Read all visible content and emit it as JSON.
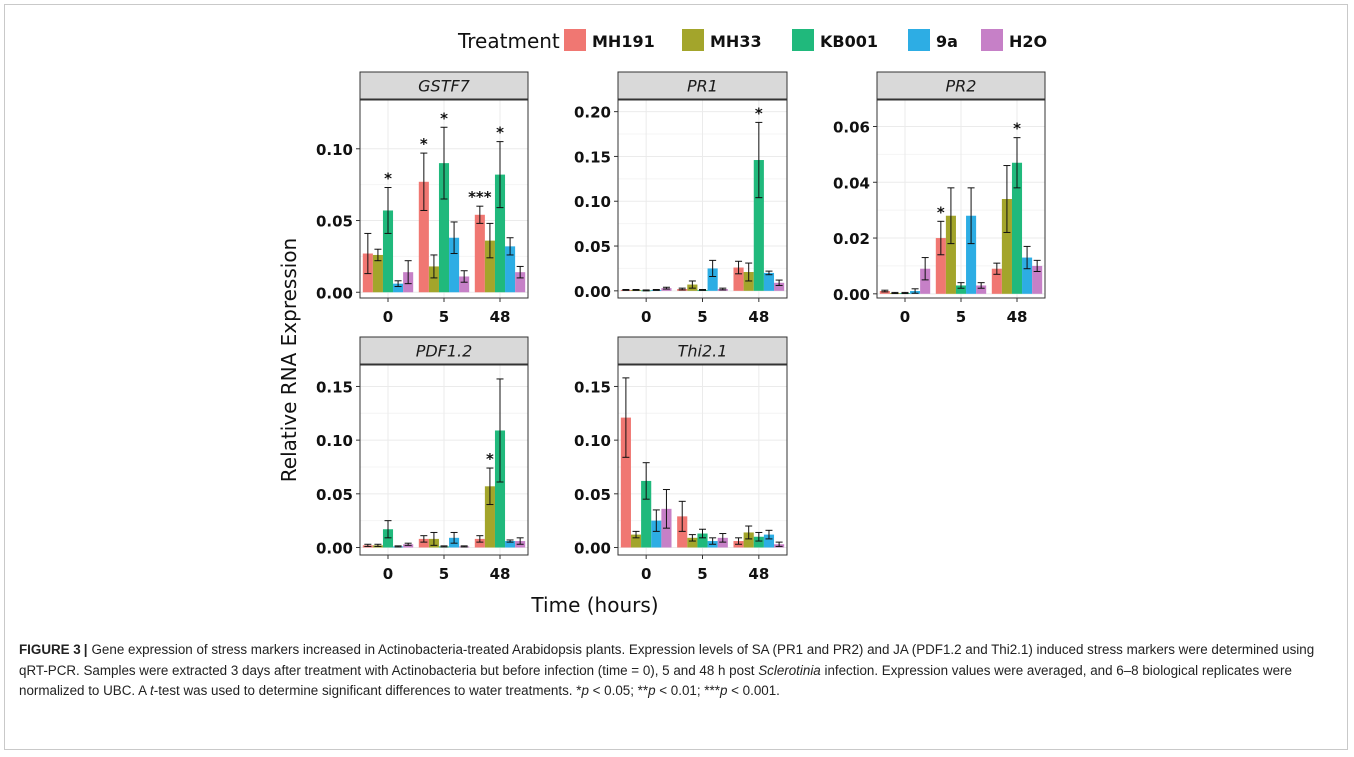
{
  "legend": {
    "title": "Treatment",
    "items": [
      {
        "label": "MH191",
        "color": "#F07772"
      },
      {
        "label": "MH33",
        "color": "#A3A52B"
      },
      {
        "label": "KB001",
        "color": "#20B97C"
      },
      {
        "label": "9a",
        "color": "#2DADE4"
      },
      {
        "label": "H2O",
        "color": "#C680C7"
      }
    ]
  },
  "axes": {
    "ylabel": "Relative RNA Expression",
    "xlabel": "Time (hours)"
  },
  "chart_data": [
    {
      "type": "bar",
      "title": "GSTF7",
      "categories": [
        "0",
        "5",
        "48"
      ],
      "yticks": [
        "0.00",
        "0.05",
        "0.10"
      ],
      "ylim": [
        -0.004,
        0.134
      ],
      "series": [
        {
          "name": "MH191",
          "values": [
            0.027,
            0.077,
            0.054
          ],
          "err": [
            0.014,
            0.02,
            0.006
          ]
        },
        {
          "name": "MH33",
          "values": [
            0.026,
            0.018,
            0.036
          ],
          "err": [
            0.004,
            0.008,
            0.012
          ]
        },
        {
          "name": "KB001",
          "values": [
            0.057,
            0.09,
            0.082
          ],
          "err": [
            0.016,
            0.025,
            0.023
          ]
        },
        {
          "name": "9a",
          "values": [
            0.006,
            0.038,
            0.032
          ],
          "err": [
            0.002,
            0.011,
            0.006
          ]
        },
        {
          "name": "H2O",
          "values": [
            0.014,
            0.011,
            0.014
          ],
          "err": [
            0.008,
            0.004,
            0.004
          ]
        }
      ],
      "annotations": [
        {
          "category": "0",
          "series": "KB001",
          "text": "*"
        },
        {
          "category": "5",
          "series": "MH191",
          "text": "*"
        },
        {
          "category": "5",
          "series": "KB001",
          "text": "*"
        },
        {
          "category": "48",
          "series": "MH191",
          "text": "***"
        },
        {
          "category": "48",
          "series": "KB001",
          "text": "*"
        }
      ]
    },
    {
      "type": "bar",
      "title": "PR1",
      "categories": [
        "0",
        "5",
        "48"
      ],
      "yticks": [
        "0.00",
        "0.05",
        "0.10",
        "0.15",
        "0.20"
      ],
      "ylim": [
        -0.008,
        0.213
      ],
      "series": [
        {
          "name": "MH191",
          "values": [
            0.001,
            0.002,
            0.026
          ],
          "err": [
            0.0005,
            0.001,
            0.007
          ]
        },
        {
          "name": "MH33",
          "values": [
            0.001,
            0.007,
            0.021
          ],
          "err": [
            0.0005,
            0.004,
            0.01
          ]
        },
        {
          "name": "KB001",
          "values": [
            0.0005,
            0.001,
            0.146
          ],
          "err": [
            0.0005,
            0.0005,
            0.042
          ]
        },
        {
          "name": "9a",
          "values": [
            0.001,
            0.025,
            0.02
          ],
          "err": [
            0.0005,
            0.009,
            0.002
          ]
        },
        {
          "name": "H2O",
          "values": [
            0.003,
            0.002,
            0.009
          ],
          "err": [
            0.001,
            0.001,
            0.003
          ]
        }
      ],
      "annotations": [
        {
          "category": "48",
          "series": "KB001",
          "text": "*"
        }
      ]
    },
    {
      "type": "bar",
      "title": "PR2",
      "categories": [
        "0",
        "5",
        "48"
      ],
      "yticks": [
        "0.00",
        "0.02",
        "0.04",
        "0.06"
      ],
      "ylim": [
        -0.0015,
        0.0695
      ],
      "series": [
        {
          "name": "MH191",
          "values": [
            0.001,
            0.02,
            0.009
          ],
          "err": [
            0.0003,
            0.006,
            0.002
          ]
        },
        {
          "name": "MH33",
          "values": [
            0.0003,
            0.028,
            0.034
          ],
          "err": [
            0.0002,
            0.01,
            0.012
          ]
        },
        {
          "name": "KB001",
          "values": [
            0.0003,
            0.003,
            0.047
          ],
          "err": [
            0.0002,
            0.001,
            0.009
          ]
        },
        {
          "name": "9a",
          "values": [
            0.001,
            0.028,
            0.013
          ],
          "err": [
            0.0008,
            0.01,
            0.004
          ]
        },
        {
          "name": "H2O",
          "values": [
            0.009,
            0.003,
            0.01
          ],
          "err": [
            0.004,
            0.001,
            0.002
          ]
        }
      ],
      "annotations": [
        {
          "category": "5",
          "series": "MH191",
          "text": "*"
        },
        {
          "category": "48",
          "series": "KB001",
          "text": "*"
        }
      ]
    },
    {
      "type": "bar",
      "title": "PDF1.2",
      "categories": [
        "0",
        "5",
        "48"
      ],
      "yticks": [
        "0.00",
        "0.05",
        "0.10",
        "0.15"
      ],
      "ylim": [
        -0.007,
        0.17
      ],
      "series": [
        {
          "name": "MH191",
          "values": [
            0.002,
            0.008,
            0.008
          ],
          "err": [
            0.001,
            0.003,
            0.003
          ]
        },
        {
          "name": "MH33",
          "values": [
            0.002,
            0.008,
            0.057
          ],
          "err": [
            0.001,
            0.006,
            0.017
          ]
        },
        {
          "name": "KB001",
          "values": [
            0.017,
            0.001,
            0.109
          ],
          "err": [
            0.008,
            0.0005,
            0.048
          ]
        },
        {
          "name": "9a",
          "values": [
            0.001,
            0.009,
            0.006
          ],
          "err": [
            0.0005,
            0.005,
            0.001
          ]
        },
        {
          "name": "H2O",
          "values": [
            0.003,
            0.001,
            0.006
          ],
          "err": [
            0.001,
            0.0005,
            0.003
          ]
        }
      ],
      "annotations": [
        {
          "category": "48",
          "series": "MH33",
          "text": "*"
        }
      ]
    },
    {
      "type": "bar",
      "title": "Thi2.1",
      "categories": [
        "0",
        "5",
        "48"
      ],
      "yticks": [
        "0.00",
        "0.05",
        "0.10",
        "0.15"
      ],
      "ylim": [
        -0.007,
        0.17
      ],
      "series": [
        {
          "name": "MH191",
          "values": [
            0.121,
            0.029,
            0.006
          ],
          "err": [
            0.037,
            0.014,
            0.003
          ]
        },
        {
          "name": "MH33",
          "values": [
            0.012,
            0.009,
            0.014
          ],
          "err": [
            0.003,
            0.003,
            0.006
          ]
        },
        {
          "name": "KB001",
          "values": [
            0.062,
            0.013,
            0.01
          ],
          "err": [
            0.017,
            0.004,
            0.004
          ]
        },
        {
          "name": "9a",
          "values": [
            0.025,
            0.006,
            0.012
          ],
          "err": [
            0.01,
            0.003,
            0.004
          ]
        },
        {
          "name": "H2O",
          "values": [
            0.036,
            0.009,
            0.003
          ],
          "err": [
            0.018,
            0.004,
            0.002
          ]
        }
      ],
      "annotations": []
    }
  ],
  "caption": {
    "label": "FIGURE 3",
    "separator": "|",
    "s1": "Gene expression of stress markers increased in Actinobacteria-treated Arabidopsis plants. Expression levels of SA (PR1 and PR2) and JA (PDF1.2 and Thi2.1) induced stress markers were determined using qRT-PCR. Samples were extracted 3 days after treatment with Actinobacteria but before infection (time = 0), 5 and 48 h post ",
    "s2": "Sclerotinia",
    "s3": " infection. Expression values were averaged, and 6–8 biological replicates were normalized to UBC. A ",
    "s4": "t",
    "s5": "-test was used to determine significant differences to water treatments. *",
    "p1": "p",
    "s6": " < 0.05; **",
    "p2": "p",
    "s7": " < 0.01; ***",
    "p3": "p",
    "s8": " < 0.001."
  }
}
